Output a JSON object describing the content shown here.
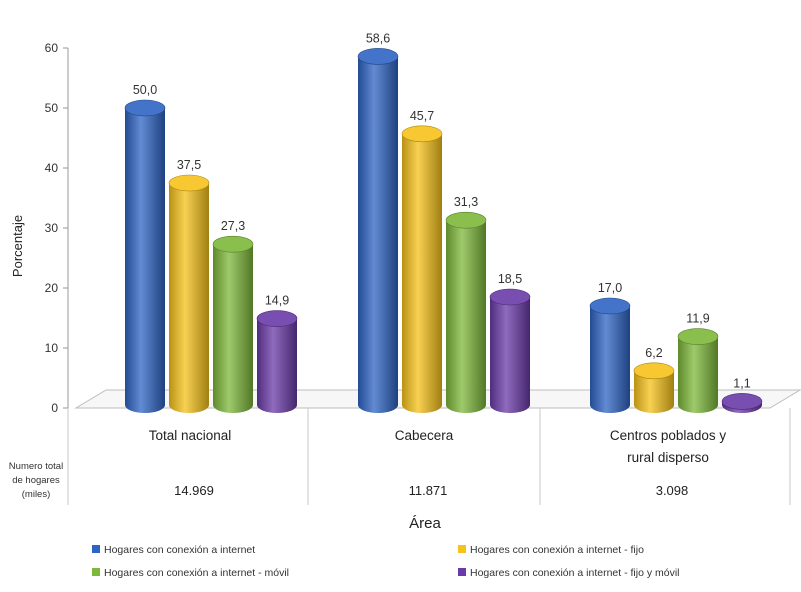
{
  "chart_data": {
    "type": "bar",
    "categories": [
      "Total nacional",
      "Cabecera",
      "Centros poblados y rural disperso"
    ],
    "category_lines": [
      [
        "Total nacional"
      ],
      [
        "Cabecera"
      ],
      [
        "Centros poblados y",
        "rural disperso"
      ]
    ],
    "series": [
      {
        "name": "Hogares con conexión a internet",
        "values": [
          50.0,
          58.6,
          17.0
        ],
        "labels": [
          "50,0",
          "58,6",
          "17,0"
        ],
        "color": "#2E64C4"
      },
      {
        "name": "Hogares con conexión a internet - fijo",
        "values": [
          37.5,
          45.7,
          6.2
        ],
        "labels": [
          "37,5",
          "45,7",
          "6,2"
        ],
        "color": "#F6C21A"
      },
      {
        "name": "Hogares con conexión a internet - móvil",
        "values": [
          27.3,
          31.3,
          11.9
        ],
        "labels": [
          "27,3",
          "31,3",
          "11,9"
        ],
        "color": "#7DB83A"
      },
      {
        "name": "Hogares con conexión a internet - fijo y móvil",
        "values": [
          14.9,
          18.5,
          1.1
        ],
        "labels": [
          "14,9",
          "18,5",
          "1,1"
        ],
        "color": "#6A3AA8"
      }
    ],
    "ylabel": "Porcentaje",
    "xlabel": "Área",
    "ylim": [
      0,
      60
    ],
    "yticks": [
      "0",
      "10",
      "20",
      "30",
      "40",
      "50",
      "60"
    ],
    "table_row_label": [
      "Numero total",
      "de hogares",
      "(miles)"
    ],
    "table_values": [
      "14.969",
      "11.871",
      "3.098"
    ],
    "legend_position": "bottom"
  }
}
